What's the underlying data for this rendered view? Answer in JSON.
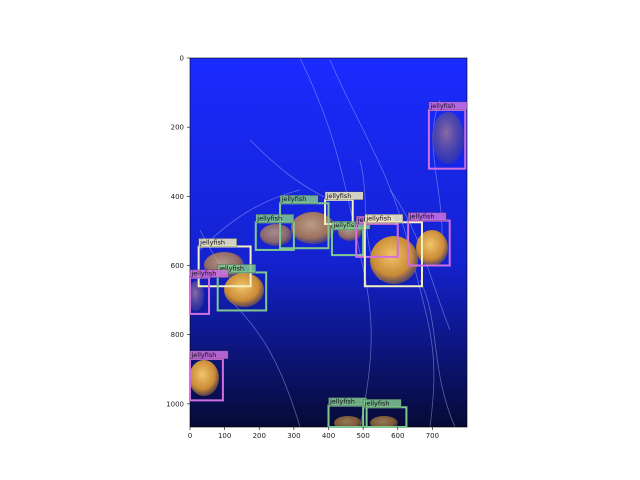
{
  "image": {
    "description_colors": {
      "water_top": "#1a2bff",
      "water_mid": "#1424d8",
      "water_bottom": "#060a35",
      "jelly_body": "#d9a24a"
    }
  },
  "axes": {
    "x_ticks": [
      "0",
      "100",
      "200",
      "300",
      "400",
      "500",
      "600",
      "700"
    ],
    "y_ticks": [
      "0",
      "200",
      "400",
      "600",
      "800",
      "1000"
    ],
    "x_tick_values": [
      0,
      100,
      200,
      300,
      400,
      500,
      600,
      700
    ],
    "y_tick_values": [
      0,
      200,
      400,
      600,
      800,
      1000
    ],
    "x_range": [
      0,
      800
    ],
    "y_range": [
      0,
      1067
    ]
  },
  "detections": [
    {
      "label": "jellyfish",
      "x0": 690,
      "y0": 150,
      "x1": 795,
      "y1": 320,
      "color": "#d070e0"
    },
    {
      "label": "jellyfish",
      "x0": 390,
      "y0": 410,
      "x1": 470,
      "y1": 480,
      "color": "#f5f0c0"
    },
    {
      "label": "jellyfish",
      "x0": 260,
      "y0": 420,
      "x1": 400,
      "y1": 550,
      "color": "#80c890"
    },
    {
      "label": "jellyfish",
      "x0": 190,
      "y0": 475,
      "x1": 300,
      "y1": 555,
      "color": "#80c890"
    },
    {
      "label": "jellyfish",
      "x0": 410,
      "y0": 495,
      "x1": 500,
      "y1": 570,
      "color": "#80c890"
    },
    {
      "label": "jellyfish",
      "x0": 480,
      "y0": 480,
      "x1": 600,
      "y1": 575,
      "color": "#d070e0"
    },
    {
      "label": "jellyfish",
      "x0": 505,
      "y0": 475,
      "x1": 670,
      "y1": 660,
      "color": "#f5f0c0"
    },
    {
      "label": "jellyfish",
      "x0": 630,
      "y0": 470,
      "x1": 750,
      "y1": 600,
      "color": "#d070e0"
    },
    {
      "label": "jellyfish",
      "x0": 25,
      "y0": 545,
      "x1": 175,
      "y1": 660,
      "color": "#f5f0c0"
    },
    {
      "label": "jellyfish",
      "x0": 80,
      "y0": 620,
      "x1": 220,
      "y1": 730,
      "color": "#80c890"
    },
    {
      "label": "jellyfish",
      "x0": 0,
      "y0": 635,
      "x1": 55,
      "y1": 740,
      "color": "#d070e0"
    },
    {
      "label": "jellyfish",
      "x0": 0,
      "y0": 870,
      "x1": 95,
      "y1": 990,
      "color": "#d070e0"
    },
    {
      "label": "jellyfish",
      "x0": 400,
      "y0": 1005,
      "x1": 510,
      "y1": 1067,
      "color": "#80c890"
    },
    {
      "label": "jellyfish",
      "x0": 500,
      "y0": 1010,
      "x1": 625,
      "y1": 1067,
      "color": "#80c890"
    }
  ]
}
